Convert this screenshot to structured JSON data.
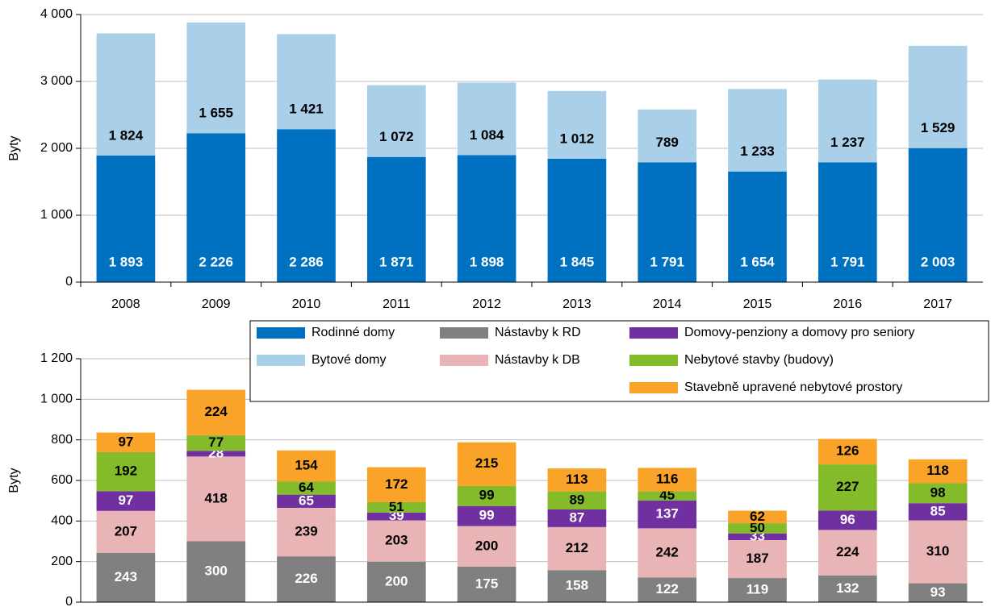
{
  "chart_data": [
    {
      "type": "stacked_bar",
      "y_label": "Byty",
      "categories": [
        "2008",
        "2009",
        "2010",
        "2011",
        "2012",
        "2013",
        "2014",
        "2015",
        "2016",
        "2017"
      ],
      "ylim": [
        0,
        4000
      ],
      "yticks": [
        0,
        {
          "value": 1000,
          "label": "1 000"
        },
        {
          "value": 2000,
          "label": "2 000"
        },
        {
          "value": 3000,
          "label": "3 000"
        },
        {
          "value": 4000,
          "label": "4 000"
        }
      ],
      "grid": true,
      "series": [
        {
          "name": "Rodinné domy",
          "color": "#0070c0",
          "label_color": "#ffffff",
          "values": [
            1893,
            2226,
            2286,
            1871,
            1898,
            1845,
            1791,
            1654,
            1791,
            2003
          ],
          "value_labels": [
            "1 893",
            "2 226",
            "2 286",
            "1 871",
            "1 898",
            "1 845",
            "1 791",
            "1 654",
            "1 791",
            "2 003"
          ]
        },
        {
          "name": "Bytové domy",
          "color": "#a9cfe9",
          "label_color": "#000000",
          "values": [
            1824,
            1655,
            1421,
            1072,
            1084,
            1012,
            789,
            1233,
            1237,
            1529
          ],
          "value_labels": [
            "1 824",
            "1 655",
            "1 421",
            "1 072",
            "1 084",
            "1 012",
            "789",
            "1 233",
            "1 237",
            "1 529"
          ]
        }
      ]
    },
    {
      "type": "stacked_bar",
      "y_label": "Byty",
      "ylim": [
        0,
        1200
      ],
      "yticks": [
        0,
        200,
        400,
        600,
        800,
        {
          "value": 1000,
          "label": "1 000"
        },
        {
          "value": 1200,
          "label": "1 200"
        }
      ],
      "grid": true,
      "series": [
        {
          "name": "Nástavby k RD",
          "color": "#808080",
          "label_color": "#ffffff",
          "values": [
            243,
            300,
            226,
            200,
            175,
            158,
            122,
            119,
            132,
            93
          ]
        },
        {
          "name": "Nástavby k DB",
          "color": "#e9b4b5",
          "label_color": "#000000",
          "values": [
            207,
            418,
            239,
            203,
            200,
            212,
            242,
            187,
            224,
            310
          ]
        },
        {
          "name": "Domovy-penziony a domovy pro seniory",
          "color": "#7030a0",
          "label_color": "#ffffff",
          "values": [
            97,
            28,
            65,
            39,
            99,
            87,
            137,
            33,
            96,
            85
          ]
        },
        {
          "name": "Nebytové stavby (budovy)",
          "color": "#83bb2a",
          "label_color": "#000000",
          "values": [
            192,
            77,
            64,
            51,
            99,
            89,
            45,
            50,
            227,
            98
          ]
        },
        {
          "name": "Stavebně upravené nebytové prostory",
          "color": "#f9a428",
          "label_color": "#000000",
          "values": [
            97,
            224,
            154,
            172,
            215,
            113,
            116,
            62,
            126,
            118
          ]
        }
      ]
    }
  ]
}
